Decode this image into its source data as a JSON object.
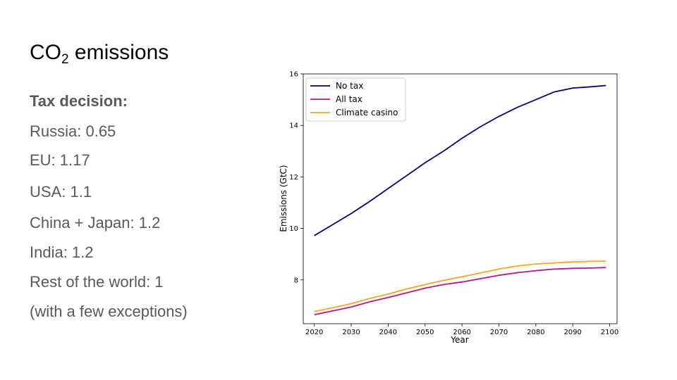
{
  "slide": {
    "title_prefix": "CO",
    "title_subscript": "2",
    "title_suffix": " emissions",
    "tax_heading": "Tax decision:",
    "tax_lines": [
      "Russia: 0.65",
      "EU: 1.17",
      "USA: 1.1",
      "China + Japan: 1.2",
      "India: 1.2",
      "Rest of the world:  1",
      "(with a few exceptions)"
    ]
  },
  "chart_data": {
    "type": "line",
    "title": "",
    "xlabel": "Year",
    "ylabel": "Emissions (GtC)",
    "xlim": [
      2017,
      2102
    ],
    "ylim": [
      6.3,
      16
    ],
    "xticks": [
      2020,
      2030,
      2040,
      2050,
      2060,
      2070,
      2080,
      2090,
      2100
    ],
    "yticks": [
      8,
      10,
      12,
      14,
      16
    ],
    "legend_position": "top-left",
    "grid": false,
    "x": [
      2020,
      2025,
      2030,
      2035,
      2040,
      2045,
      2050,
      2055,
      2060,
      2065,
      2070,
      2075,
      2080,
      2085,
      2090,
      2095,
      2099
    ],
    "series": [
      {
        "name": "No tax",
        "color": "#000080",
        "values": [
          9.72,
          10.15,
          10.58,
          11.05,
          11.55,
          12.05,
          12.55,
          13.0,
          13.5,
          13.95,
          14.35,
          14.7,
          15.0,
          15.3,
          15.45,
          15.5,
          15.55
        ]
      },
      {
        "name": "All tax",
        "color": "#b3168f",
        "values": [
          6.65,
          6.8,
          6.95,
          7.15,
          7.32,
          7.5,
          7.68,
          7.82,
          7.92,
          8.05,
          8.18,
          8.28,
          8.36,
          8.42,
          8.45,
          8.46,
          8.48
        ]
      },
      {
        "name": "Climate casino",
        "color": "#f5a623",
        "values": [
          6.77,
          6.92,
          7.08,
          7.28,
          7.45,
          7.65,
          7.82,
          7.98,
          8.12,
          8.27,
          8.42,
          8.54,
          8.62,
          8.66,
          8.7,
          8.72,
          8.73
        ]
      }
    ]
  }
}
